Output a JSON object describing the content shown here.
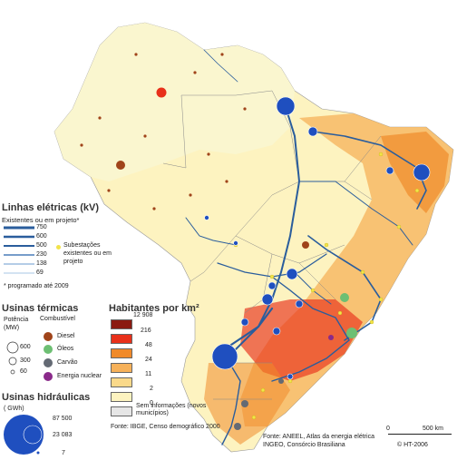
{
  "lines_legend": {
    "title": "Linhas elétricas (kV)",
    "subtitle": "Existentes ou em projeto*",
    "kv": [
      "750",
      "600",
      "500",
      "230",
      "138",
      "69"
    ],
    "substations": "Subestações existentes ou em projeto",
    "note": "* programado até 2009",
    "line_color": "#2a5d9c",
    "substation_color": "#f2e34a"
  },
  "thermal_legend": {
    "title": "Usinas térmicas",
    "power_header": "Potência (MW)",
    "fuel_header": "Combustível",
    "sizes": [
      "600",
      "300",
      "60"
    ],
    "fuels": [
      {
        "label": "Diesel",
        "color": "#a0441a",
        "icon": "diesel-dot-icon"
      },
      {
        "label": "Óleos",
        "color": "#6dbf73",
        "icon": "oil-dot-icon"
      },
      {
        "label": "Carvão",
        "color": "#646a74",
        "icon": "coal-dot-icon"
      },
      {
        "label": "Energia nuclear",
        "color": "#8a2a8a",
        "icon": "nuclear-dot-icon"
      }
    ]
  },
  "hydro_legend": {
    "title": "Usinas hidráulicas",
    "unit": "( GWh)",
    "values": [
      "87 500",
      "23 083",
      "7"
    ],
    "color": "#1f4fbf"
  },
  "population_legend": {
    "title": "Habitantes por km²",
    "breaks": [
      "12 908",
      "216",
      "48",
      "24",
      "11",
      "2",
      "0"
    ],
    "colors": [
      "#8b1a10",
      "#e8301a",
      "#f08a2a",
      "#f6b15a",
      "#fad98a",
      "#fdf3c0"
    ],
    "no_data": "Sem informações (novos municípios)",
    "no_data_color": "#e6e6e6"
  },
  "sources": {
    "census": "Fonte: IBGE, Censo demográfico 2000",
    "aneel": "Fonte: ANEEL, Atlas da energia elétrica",
    "ingeo": "INGEO, Consórcio Brasiliana",
    "copyright": "© HT-2006"
  },
  "scale": {
    "zero": "0",
    "distance": "500 km"
  }
}
